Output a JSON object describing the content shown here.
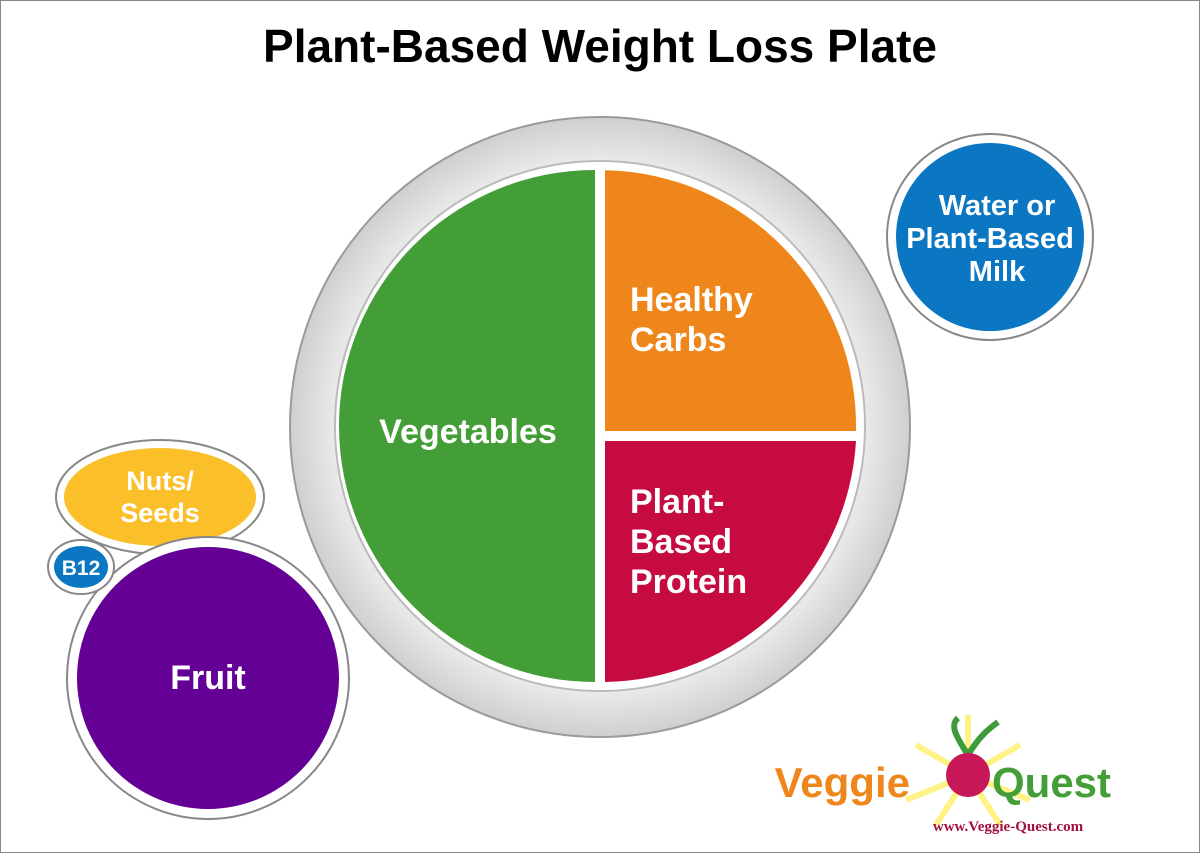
{
  "title": "Plant-Based Weight Loss Plate",
  "plate": {
    "sections": [
      {
        "lines": [
          "Vegetables"
        ]
      },
      {
        "lines": [
          "Healthy",
          "Carbs"
        ]
      },
      {
        "lines": [
          "Plant-",
          "Based",
          "Protein"
        ]
      }
    ]
  },
  "sides": [
    {
      "lines": [
        "Water or",
        "Plant-Based",
        "Milk"
      ]
    },
    {
      "lines": [
        "Nuts/",
        "Seeds"
      ]
    },
    {
      "lines": [
        "B12"
      ]
    },
    {
      "lines": [
        "Fruit"
      ]
    }
  ],
  "logo": {
    "word1": "Veggie",
    "word2": "Quest",
    "url": "www.Veggie-Quest.com"
  }
}
